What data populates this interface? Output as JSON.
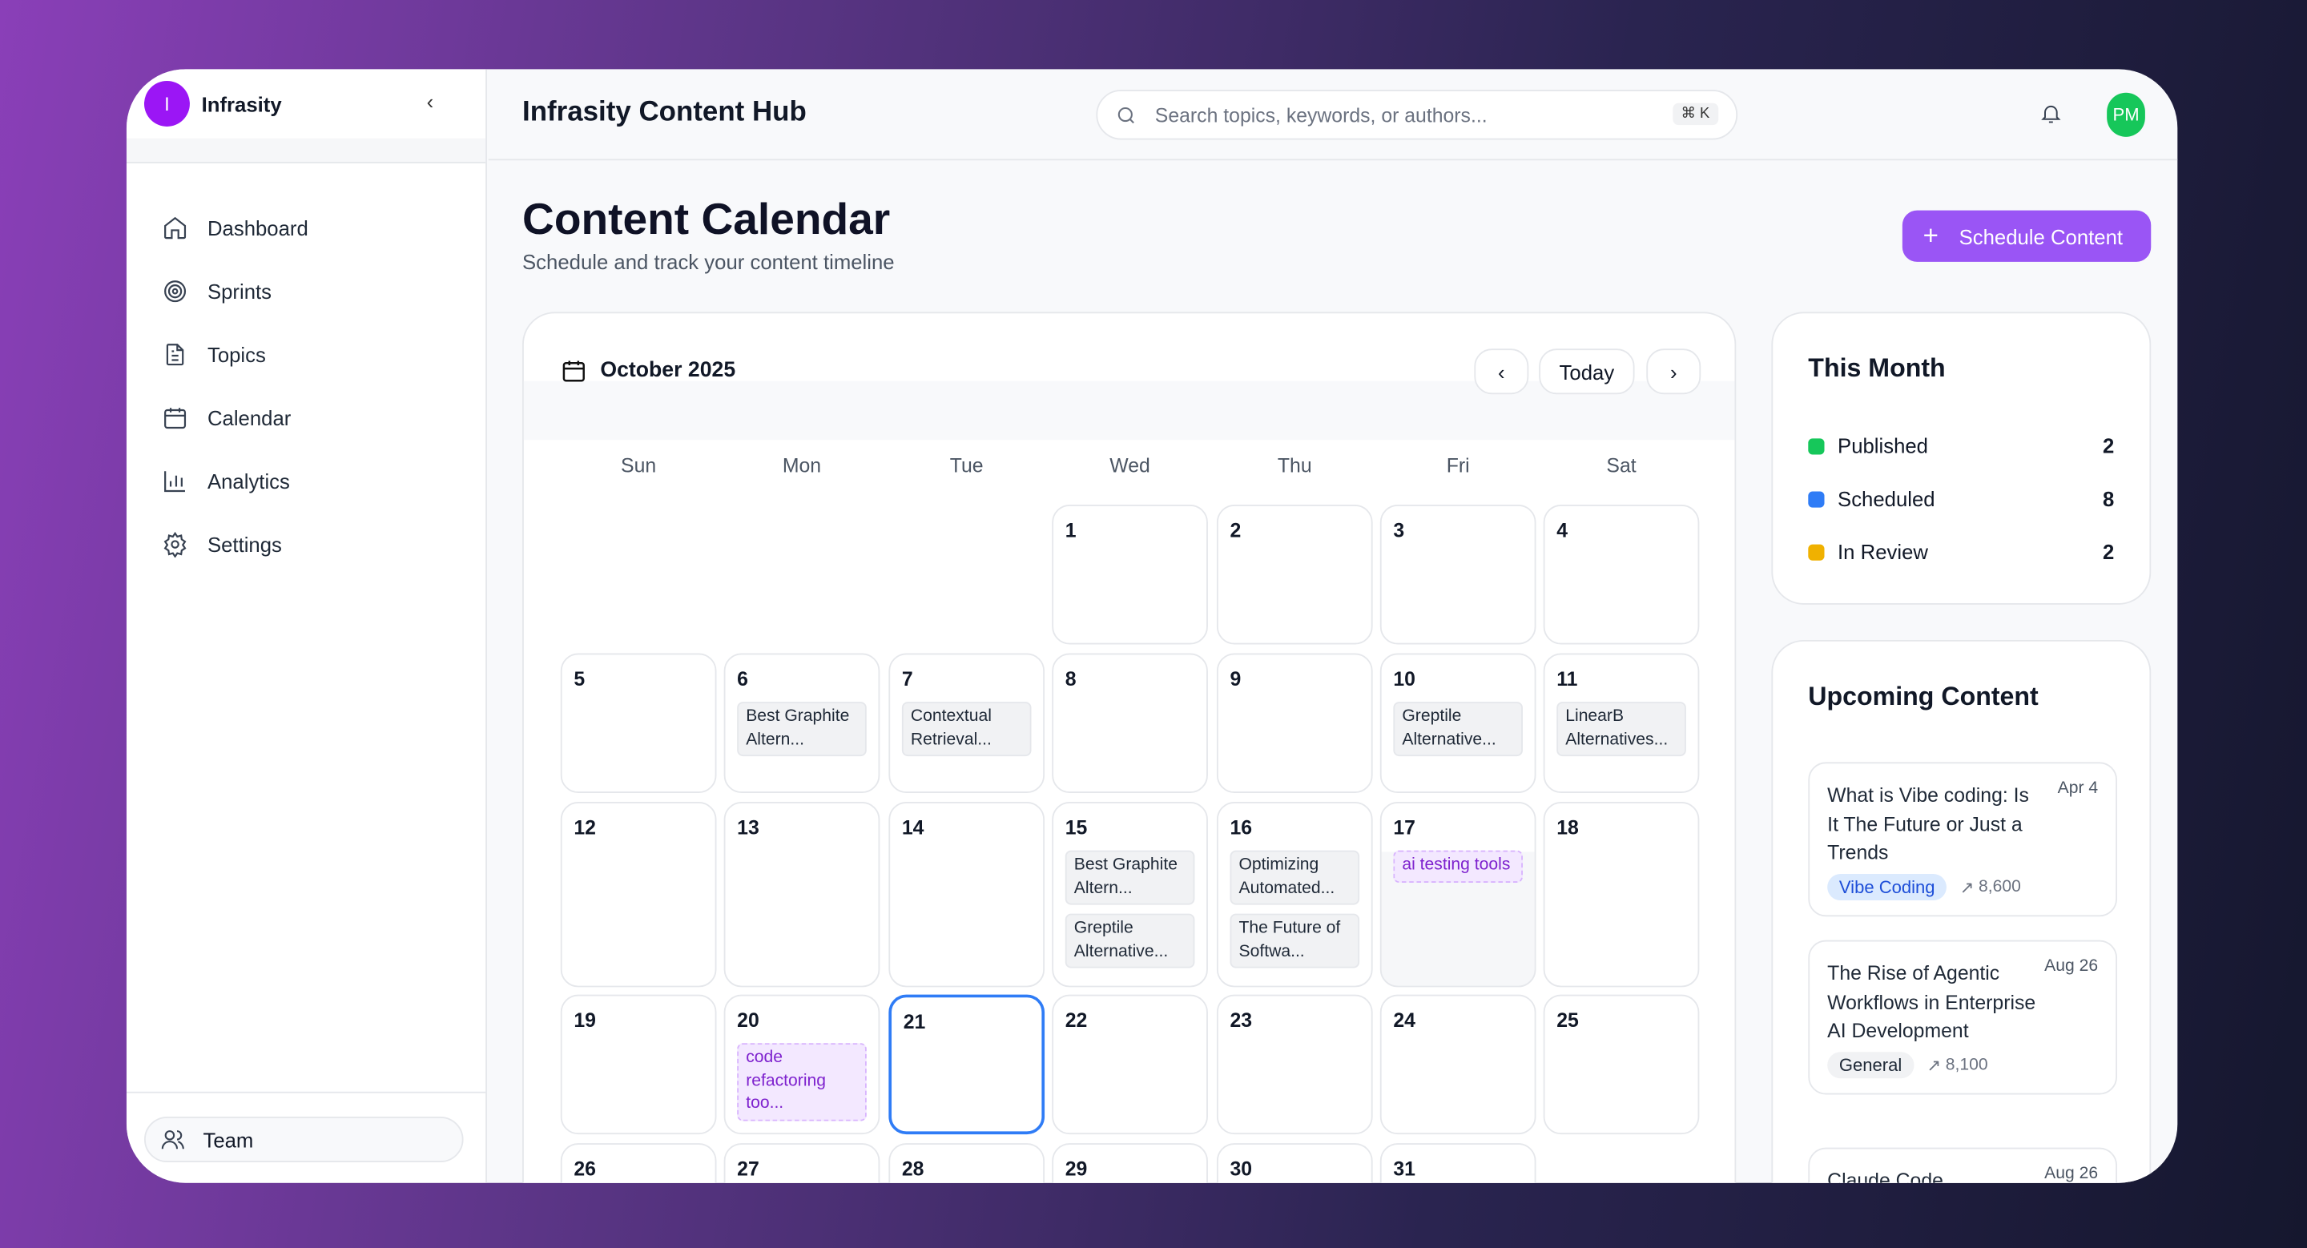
{
  "sidebar": {
    "logo_letter": "I",
    "brand": "Infrasity",
    "items": [
      {
        "label": "Dashboard",
        "icon": "home-icon"
      },
      {
        "label": "Sprints",
        "icon": "target-icon"
      },
      {
        "label": "Topics",
        "icon": "file-text-icon"
      },
      {
        "label": "Calendar",
        "icon": "calendar-icon"
      },
      {
        "label": "Analytics",
        "icon": "bar-chart-icon"
      },
      {
        "label": "Settings",
        "icon": "gear-icon"
      }
    ],
    "team_label": "Team"
  },
  "header": {
    "title": "Infrasity Content Hub",
    "search_placeholder": "Search topics, keywords, or authors...",
    "shortcut": "⌘ K",
    "avatar_initials": "PM"
  },
  "page": {
    "title": "Content Calendar",
    "subtitle": "Schedule and track your content timeline",
    "schedule_button": "Schedule Content"
  },
  "calendar": {
    "month": "October 2025",
    "today_button": "Today",
    "prev": "‹",
    "next": "›",
    "weekdays": [
      "Sun",
      "Mon",
      "Tue",
      "Wed",
      "Thu",
      "Fri",
      "Sat"
    ],
    "selected_day": 21,
    "days": [
      {
        "d": "1",
        "events": []
      },
      {
        "d": "2",
        "events": []
      },
      {
        "d": "3",
        "events": []
      },
      {
        "d": "4",
        "events": []
      },
      {
        "d": "5",
        "events": []
      },
      {
        "d": "6",
        "events": [
          {
            "text": "Best Graphite Altern...",
            "status": "scheduled"
          }
        ]
      },
      {
        "d": "7",
        "events": [
          {
            "text": "Contextual Retrieval...",
            "status": "scheduled"
          }
        ]
      },
      {
        "d": "8",
        "events": []
      },
      {
        "d": "9",
        "events": []
      },
      {
        "d": "10",
        "events": [
          {
            "text": "Greptile Alternative...",
            "status": "scheduled"
          }
        ]
      },
      {
        "d": "11",
        "events": [
          {
            "text": "LinearB Alternatives...",
            "status": "scheduled"
          }
        ]
      },
      {
        "d": "12",
        "events": []
      },
      {
        "d": "13",
        "events": []
      },
      {
        "d": "14",
        "events": []
      },
      {
        "d": "15",
        "events": [
          {
            "text": "Best Graphite Altern...",
            "status": "scheduled"
          },
          {
            "text": "Greptile Alternative...",
            "status": "scheduled"
          }
        ]
      },
      {
        "d": "16",
        "events": [
          {
            "text": "Optimizing Automated...",
            "status": "scheduled"
          },
          {
            "text": "The Future of Softwa...",
            "status": "scheduled"
          }
        ]
      },
      {
        "d": "17",
        "events": [
          {
            "text": "ai testing tools",
            "status": "review"
          }
        ]
      },
      {
        "d": "18",
        "events": []
      },
      {
        "d": "19",
        "events": []
      },
      {
        "d": "20",
        "events": [
          {
            "text": "code refactoring too...",
            "status": "review"
          }
        ]
      },
      {
        "d": "21",
        "events": []
      },
      {
        "d": "22",
        "events": []
      },
      {
        "d": "23",
        "events": []
      },
      {
        "d": "24",
        "events": []
      },
      {
        "d": "25",
        "events": []
      },
      {
        "d": "26",
        "events": []
      },
      {
        "d": "27",
        "events": []
      },
      {
        "d": "28",
        "events": []
      },
      {
        "d": "29",
        "events": []
      },
      {
        "d": "30",
        "events": []
      },
      {
        "d": "31",
        "events": []
      }
    ]
  },
  "this_month": {
    "title": "This Month",
    "stats": [
      {
        "label": "Published",
        "count": "2",
        "color": "#16c75a"
      },
      {
        "label": "Scheduled",
        "count": "8",
        "color": "#2f7cf6"
      },
      {
        "label": "In Review",
        "count": "2",
        "color": "#f0b100"
      }
    ]
  },
  "upcoming": {
    "title": "Upcoming Content",
    "items": [
      {
        "title": "What is Vibe coding: Is It The Future or Just a Trends",
        "date": "Apr 4",
        "tag": "Vibe Coding",
        "tag_color": "blue",
        "volume": "8,600"
      },
      {
        "title": "The Rise of Agentic Workflows in Enterprise AI Development",
        "date": "Aug 26",
        "tag": "General",
        "tag_color": "gray",
        "volume": "8,100"
      },
      {
        "title": "Claude Code",
        "date": "Aug 26"
      }
    ]
  }
}
